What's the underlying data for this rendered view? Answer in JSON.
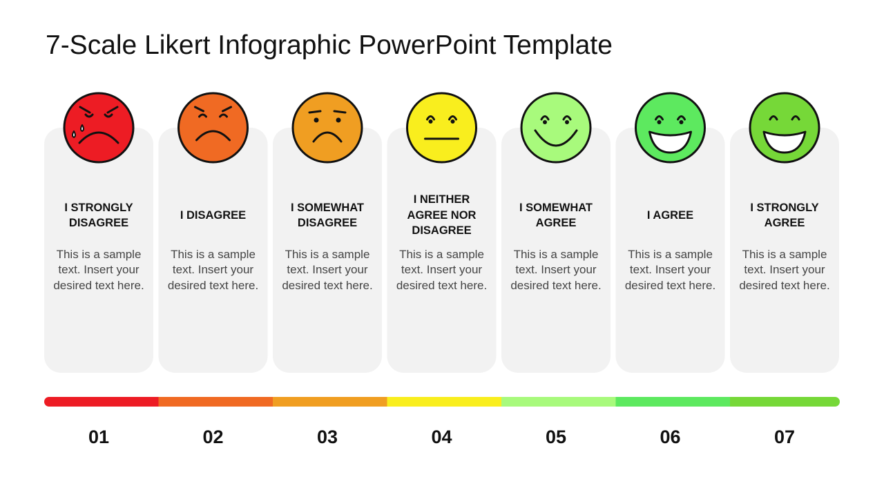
{
  "title": "7-Scale Likert Infographic PowerPoint Template",
  "items": [
    {
      "label": "I STRONGLY DISAGREE",
      "text": "This is a sample text. Insert your desired text here.",
      "number": "01",
      "color": "#ed1c24"
    },
    {
      "label": "I DISAGREE",
      "text": "This is a sample text. Insert your desired text here.",
      "number": "02",
      "color": "#f06a23"
    },
    {
      "label": "I SOMEWHAT DISAGREE",
      "text": "This is a sample text. Insert your desired text here.",
      "number": "03",
      "color": "#f09e22"
    },
    {
      "label": "I NEITHER AGREE NOR DISAGREE",
      "text": "This is a sample text. Insert your desired text here.",
      "number": "04",
      "color": "#f9ee1e"
    },
    {
      "label": "I SOMEWHAT AGREE",
      "text": "This is a sample text. Insert your desired text here.",
      "number": "05",
      "color": "#a8fa7c"
    },
    {
      "label": "I AGREE",
      "text": "This is a sample text. Insert your desired text here.",
      "number": "06",
      "color": "#5de95f"
    },
    {
      "label": "I STRONGLY AGREE",
      "text": "This is a sample text. Insert your desired text here.",
      "number": "07",
      "color": "#76d838"
    }
  ]
}
